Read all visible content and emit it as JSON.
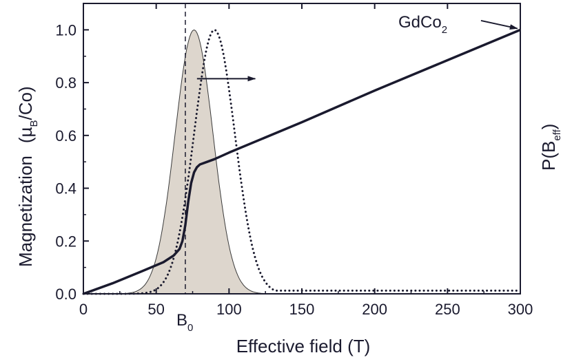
{
  "chart_data": {
    "type": "line",
    "xlabel": "Effective field (T)",
    "ylabel_main": "Magnetization",
    "ylabel_unit_prefix": "(µ",
    "ylabel_unit_sub": "B",
    "ylabel_unit_suffix": "/Co)",
    "y2label_main": "P(B",
    "y2label_sub": "eff",
    "y2label_suffix": ")",
    "xlim": [
      0,
      300
    ],
    "ylim": [
      0,
      1.1
    ],
    "x_ticks": [
      0,
      50,
      100,
      150,
      200,
      250,
      300
    ],
    "x_tick_labels": [
      "0",
      "50",
      "100",
      "150",
      "200",
      "250",
      "300"
    ],
    "y_ticks": [
      0.0,
      0.2,
      0.4,
      0.6,
      0.8,
      1.0
    ],
    "y_tick_labels": [
      "0.0",
      "0.2",
      "0.4",
      "0.6",
      "0.8",
      "1.0"
    ],
    "b0_value": 70,
    "b0_label": "B",
    "b0_sub": "0",
    "series_label_main": "GdCo",
    "series_label_sub": "2",
    "series": [
      {
        "name": "Magnetization (GdCo2)",
        "style": "solid",
        "x": [
          0,
          20,
          40,
          55,
          62,
          66,
          68,
          70,
          72,
          74,
          76,
          78,
          80,
          85,
          90,
          100,
          150,
          200,
          250,
          300
        ],
        "y": [
          0.0,
          0.04,
          0.085,
          0.12,
          0.145,
          0.17,
          0.2,
          0.26,
          0.35,
          0.42,
          0.46,
          0.48,
          0.49,
          0.5,
          0.51,
          0.535,
          0.65,
          0.77,
          0.885,
          1.0
        ]
      },
      {
        "name": "P(Beff) distribution (shaded)",
        "style": "filled",
        "gaussian_center": 76,
        "gaussian_sigma": 13,
        "peak": 1.0
      },
      {
        "name": "P(Beff) distribution (dotted)",
        "style": "dotted",
        "gaussian_center": 90,
        "gaussian_sigma": 14,
        "peak": 1.0,
        "tail_level": 0.012,
        "tail_start": 125
      }
    ],
    "arrow_right_axis": {
      "x_start": 78,
      "x_end": 118,
      "y": 0.815
    },
    "arrow_label": {
      "x_start": 273,
      "y_start": 1.035,
      "x_end": 298,
      "y_end": 1.005
    },
    "colors": {
      "line": "#1a1a2e",
      "fill": "#ddd6cd",
      "fill_stroke": "#3a3a3a"
    }
  }
}
